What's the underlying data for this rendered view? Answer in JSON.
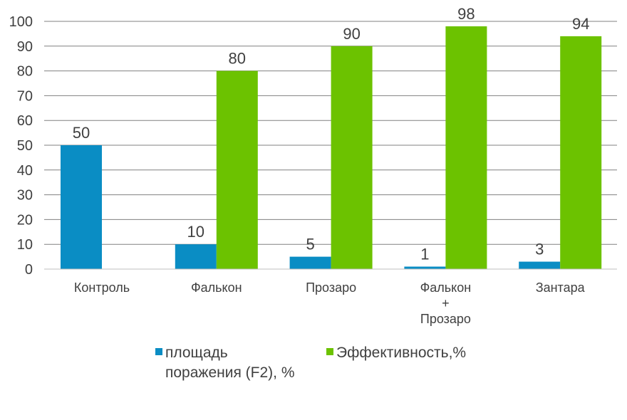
{
  "chart_data": {
    "type": "bar",
    "categories": [
      "Контроль",
      "Фалькон",
      "Прозаро",
      "Фалькон\n+\nПрозаро",
      "Зантара"
    ],
    "series": [
      {
        "name": "площадь\nпоражения (F2), %",
        "values": [
          50,
          10,
          5,
          1,
          3
        ],
        "color": "#0A8DC4",
        "labels": [
          "50",
          "10",
          "5",
          "1",
          "3"
        ]
      },
      {
        "name": "Эффективность,%",
        "values": [
          null,
          80,
          90,
          98,
          94
        ],
        "color": "#6CC200",
        "labels": [
          "",
          "80",
          "90",
          "98",
          "94"
        ]
      }
    ],
    "y_ticks": [
      "0",
      "10",
      "20",
      "30",
      "40",
      "50",
      "60",
      "70",
      "80",
      "90",
      "100"
    ],
    "ylim": [
      0,
      100
    ],
    "grid": true,
    "legend_position": "bottom",
    "title": "",
    "xlabel": "",
    "ylabel": ""
  }
}
